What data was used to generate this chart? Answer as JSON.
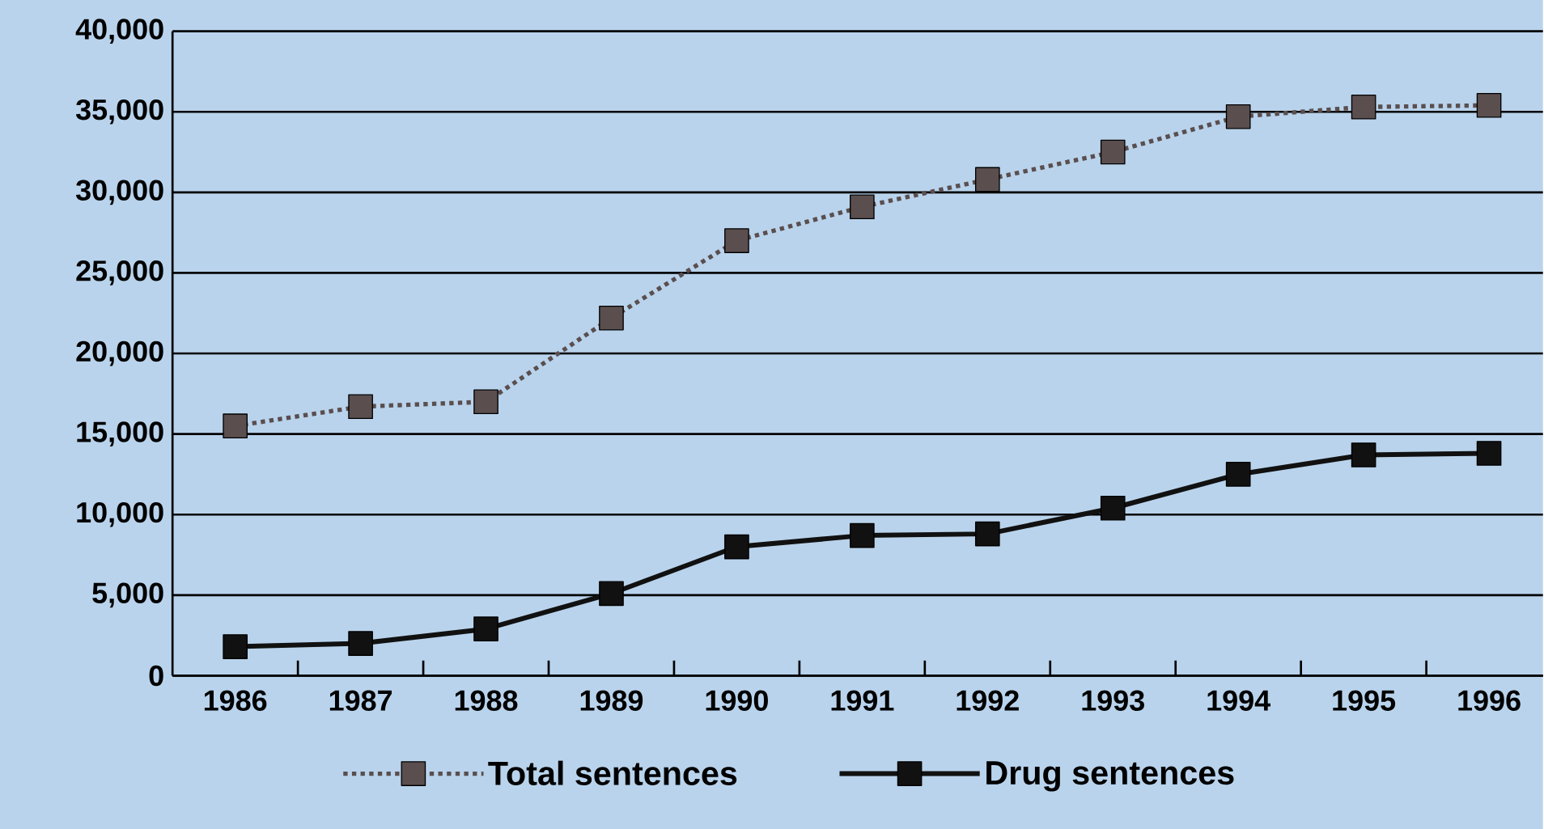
{
  "chart_data": {
    "type": "line",
    "categories": [
      "1986",
      "1987",
      "1988",
      "1989",
      "1990",
      "1991",
      "1992",
      "1993",
      "1994",
      "1995",
      "1996"
    ],
    "series": [
      {
        "name": "Total sentences",
        "color": "#5a4e4e",
        "line_style": "dotted",
        "values": [
          15500,
          16700,
          17000,
          22200,
          27000,
          29100,
          30800,
          32500,
          34700,
          35300,
          35400
        ]
      },
      {
        "name": "Drug sentences",
        "color": "#111111",
        "line_style": "solid",
        "values": [
          1800,
          2000,
          2900,
          5100,
          8000,
          8700,
          8800,
          10400,
          12500,
          13700,
          13800
        ]
      }
    ],
    "ylim": [
      0,
      40000
    ],
    "yticks": [
      0,
      {
        "value": 5000,
        "label": "5,000"
      },
      {
        "value": 10000,
        "label": "10,000"
      },
      {
        "value": 15000,
        "label": "15,000"
      },
      {
        "value": 20000,
        "label": "20,000"
      },
      {
        "value": 25000,
        "label": "25,000"
      },
      {
        "value": 30000,
        "label": "30,000"
      },
      {
        "value": 35000,
        "label": "35,000"
      },
      {
        "value": 40000,
        "label": "40,000"
      }
    ],
    "grid": "y",
    "marker": "square",
    "legend": "bottom"
  }
}
